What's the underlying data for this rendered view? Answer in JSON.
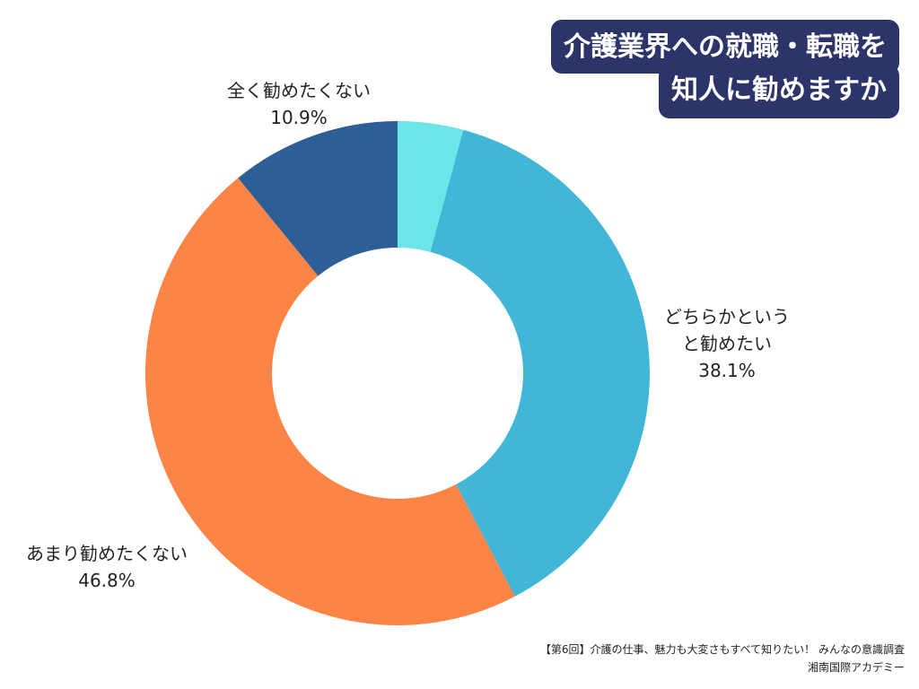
{
  "title": {
    "line1": "介護業界への就職・転職を",
    "line2": "知人に勧めますか"
  },
  "chart_data": {
    "type": "pie",
    "donut": true,
    "slices": [
      {
        "label": "",
        "value": 4.2,
        "color": "#6ce4e8"
      },
      {
        "label_lines": [
          "どちらかという",
          "と勧めたい"
        ],
        "value": 38.1,
        "value_label": "38.1%",
        "color": "#41b6d6"
      },
      {
        "label_lines": [
          "あまり勧めたくない"
        ],
        "value": 46.8,
        "value_label": "46.8%",
        "color": "#fd8447"
      },
      {
        "label_lines": [
          "全く勧めたくない"
        ],
        "value": 10.9,
        "value_label": "10.9%",
        "color": "#2e5e96"
      }
    ]
  },
  "source": {
    "line1": "【第6回】介護の仕事、魅力も大変さもすべて知りたい！ みんなの意識調査",
    "line2": "湘南国際アカデミー"
  }
}
